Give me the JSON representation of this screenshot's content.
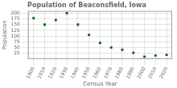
{
  "chart_data": {
    "type": "scatter",
    "title": "Population of Beaconsfield, Iowa",
    "xlabel": "Census Year",
    "ylabel": "Population",
    "x": [
      1900,
      1910,
      1920,
      1930,
      1940,
      1950,
      1960,
      1970,
      1980,
      1990,
      2000,
      2010,
      2020
    ],
    "values": [
      178,
      150,
      170,
      200,
      150,
      105,
      70,
      50,
      40,
      27,
      10,
      15,
      18
    ],
    "color": "#006400",
    "marker": "square",
    "xlim": [
      1895,
      2025
    ],
    "ylim": [
      0,
      210
    ],
    "xticks": [
      1900,
      1910,
      1920,
      1930,
      1940,
      1950,
      1960,
      1970,
      1980,
      1990,
      2000,
      2010,
      2020
    ],
    "yticks": [
      25,
      50,
      75,
      100,
      125,
      150,
      175,
      200
    ],
    "grid": true
  }
}
